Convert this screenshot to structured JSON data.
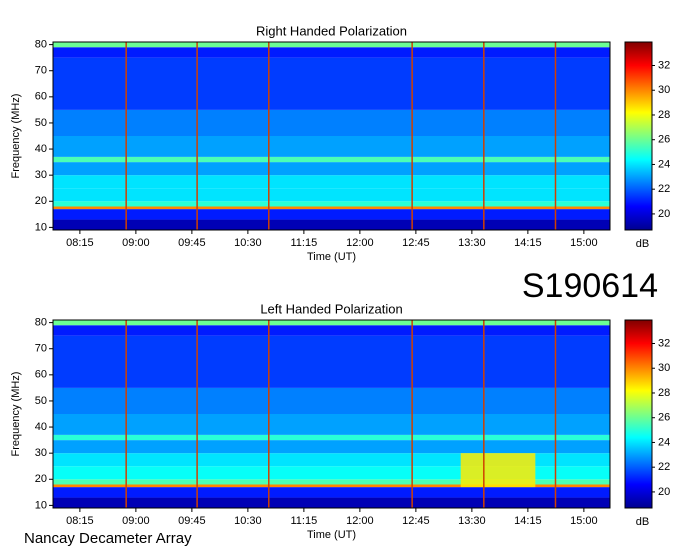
{
  "chart_data": [
    {
      "type": "heatmap",
      "title": "Right Handed Polarization",
      "x_label": "Time (UT)",
      "y_label": "Frequency (MHz)",
      "xlim": [
        7.89,
        15.35
      ],
      "xticks": [
        {
          "value": 8.25,
          "label": "08:15"
        },
        {
          "value": 9.0,
          "label": "09:00"
        },
        {
          "value": 9.75,
          "label": "09:45"
        },
        {
          "value": 10.5,
          "label": "10:30"
        },
        {
          "value": 11.25,
          "label": "11:15"
        },
        {
          "value": 12.0,
          "label": "12:00"
        },
        {
          "value": 12.75,
          "label": "12:45"
        },
        {
          "value": 13.5,
          "label": "13:30"
        },
        {
          "value": 14.25,
          "label": "14:15"
        },
        {
          "value": 15.0,
          "label": "15:00"
        }
      ],
      "ylim": [
        9,
        81
      ],
      "yticks": [
        10,
        20,
        30,
        40,
        50,
        60,
        70,
        80
      ],
      "y_bins": [
        9,
        13,
        17,
        18,
        20,
        25,
        30,
        35,
        37,
        45,
        55,
        75,
        79,
        81
      ],
      "values": [
        19.5,
        21,
        30,
        25,
        24,
        24,
        23,
        25.5,
        23,
        22.5,
        21.5,
        21,
        26
      ],
      "vlines": [
        8.87,
        9.82,
        10.78,
        12.7,
        13.66,
        14.62
      ],
      "vline_color": "#d04000",
      "colormap": "jet",
      "colorbar": {
        "label": "dB",
        "lim": [
          18.7,
          33.9
        ],
        "ticks": [
          20,
          22,
          24,
          26,
          28,
          30,
          32
        ]
      }
    },
    {
      "type": "heatmap",
      "title": "Left Handed Polarization",
      "x_label": "Time (UT)",
      "y_label": "Frequency (MHz)",
      "xlim": [
        7.89,
        15.35
      ],
      "xticks": [
        {
          "value": 8.25,
          "label": "08:15"
        },
        {
          "value": 9.0,
          "label": "09:00"
        },
        {
          "value": 9.75,
          "label": "09:45"
        },
        {
          "value": 10.5,
          "label": "10:30"
        },
        {
          "value": 11.25,
          "label": "11:15"
        },
        {
          "value": 12.0,
          "label": "12:00"
        },
        {
          "value": 12.75,
          "label": "12:45"
        },
        {
          "value": 13.5,
          "label": "13:30"
        },
        {
          "value": 14.25,
          "label": "14:15"
        },
        {
          "value": 15.0,
          "label": "15:00"
        }
      ],
      "ylim": [
        9,
        81
      ],
      "yticks": [
        10,
        20,
        30,
        40,
        50,
        60,
        70,
        80
      ],
      "y_bins": [
        9,
        13,
        17,
        18,
        20,
        25,
        30,
        35,
        37,
        45,
        55,
        75,
        79,
        81
      ],
      "values": [
        19.5,
        21,
        30,
        25.5,
        24.5,
        24,
        23,
        25,
        23,
        22.5,
        21.5,
        21,
        26
      ],
      "bursts": [
        {
          "x": [
            13.35,
            14.35
          ],
          "y": [
            17,
            30
          ],
          "value": 28.5
        }
      ],
      "vlines": [
        8.87,
        9.82,
        10.78,
        12.7,
        13.66,
        14.62
      ],
      "vline_color": "#d04000",
      "colormap": "jet",
      "colorbar": {
        "label": "dB",
        "lim": [
          18.7,
          33.9
        ],
        "ticks": [
          20,
          22,
          24,
          26,
          28,
          30,
          32
        ]
      }
    }
  ],
  "page": {
    "id": "S190614",
    "footer": "Nancay Decameter Array"
  }
}
